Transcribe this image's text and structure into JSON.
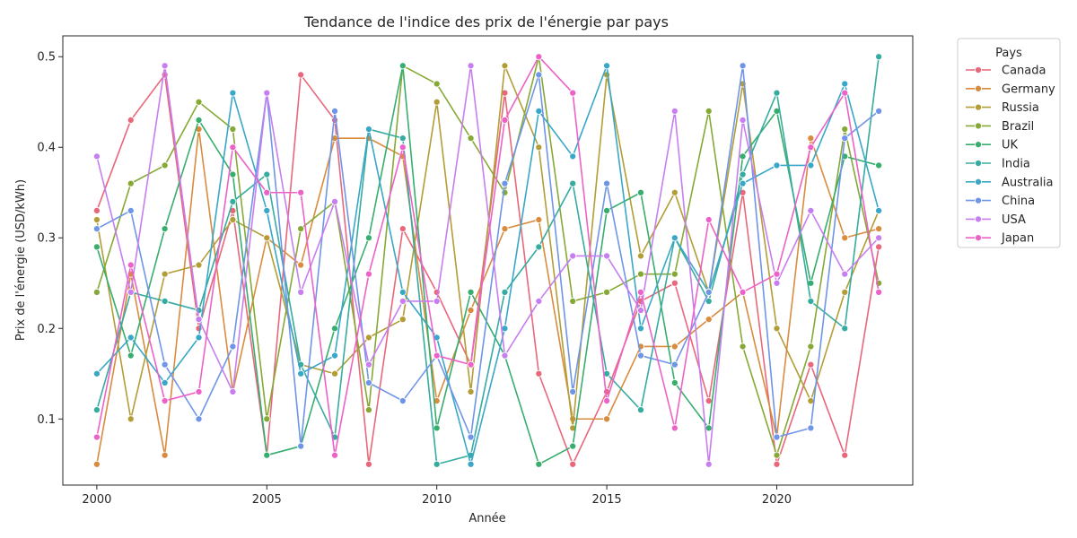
{
  "chart_data": {
    "type": "line",
    "title": "Tendance de l'indice des prix de l'énergie par pays",
    "xlabel": "Année",
    "ylabel": "Prix de l'énergie (USD/kWh)",
    "xlim": [
      1999,
      2024
    ],
    "ylim": [
      0.027,
      0.523
    ],
    "xticks": [
      2000,
      2005,
      2010,
      2015,
      2020
    ],
    "yticks": [
      0.1,
      0.2,
      0.3,
      0.4,
      0.5
    ],
    "grid": false,
    "legend": {
      "title": "Pays",
      "placement": "outside-right"
    },
    "markers": true,
    "x": [
      2000,
      2001,
      2002,
      2003,
      2004,
      2005,
      2006,
      2007,
      2008,
      2009,
      2010,
      2011,
      2012,
      2013,
      2014,
      2015,
      2016,
      2017,
      2018,
      2019,
      2020,
      2021,
      2022,
      2023
    ],
    "series": [
      {
        "name": "Canada",
        "color": "#e9677a",
        "values": [
          0.33,
          0.43,
          0.48,
          0.2,
          0.33,
          0.06,
          0.48,
          0.43,
          0.05,
          0.31,
          0.24,
          0.16,
          0.46,
          0.15,
          0.05,
          0.13,
          0.23,
          0.25,
          0.12,
          0.35,
          0.05,
          0.16,
          0.06,
          0.29
        ]
      },
      {
        "name": "Germany",
        "color": "#d98b3e",
        "values": [
          0.05,
          0.26,
          0.06,
          0.42,
          0.13,
          0.3,
          0.27,
          0.41,
          0.41,
          0.39,
          0.12,
          0.22,
          0.31,
          0.32,
          0.1,
          0.1,
          0.18,
          0.18,
          0.21,
          0.24,
          0.08,
          0.41,
          0.3,
          0.31
        ]
      },
      {
        "name": "Russia",
        "color": "#b39d36",
        "values": [
          0.32,
          0.1,
          0.26,
          0.27,
          0.32,
          0.3,
          0.16,
          0.15,
          0.19,
          0.21,
          0.45,
          0.13,
          0.49,
          0.4,
          0.09,
          0.48,
          0.28,
          0.35,
          0.24,
          0.47,
          0.2,
          0.12,
          0.24,
          0.33
        ]
      },
      {
        "name": "Brazil",
        "color": "#86a935",
        "values": [
          0.24,
          0.36,
          0.38,
          0.45,
          0.42,
          0.1,
          0.31,
          0.34,
          0.11,
          0.49,
          0.47,
          0.41,
          0.35,
          0.5,
          0.23,
          0.24,
          0.26,
          0.26,
          0.44,
          0.18,
          0.06,
          0.18,
          0.42,
          0.25
        ]
      },
      {
        "name": "UK",
        "color": "#37ad6e",
        "values": [
          0.29,
          0.17,
          0.31,
          0.43,
          0.37,
          0.06,
          0.07,
          0.2,
          0.3,
          0.49,
          0.09,
          0.24,
          0.17,
          0.05,
          0.07,
          0.33,
          0.35,
          0.14,
          0.09,
          0.39,
          0.44,
          0.25,
          0.39,
          0.38
        ]
      },
      {
        "name": "India",
        "color": "#36ab9f",
        "values": [
          0.11,
          0.24,
          0.23,
          0.22,
          0.34,
          0.37,
          0.16,
          0.08,
          0.42,
          0.41,
          0.05,
          0.06,
          0.24,
          0.29,
          0.36,
          0.15,
          0.11,
          0.3,
          0.23,
          0.37,
          0.46,
          0.23,
          0.2,
          0.5
        ]
      },
      {
        "name": "Australia",
        "color": "#39a7c8",
        "values": [
          0.15,
          0.19,
          0.14,
          0.19,
          0.46,
          0.33,
          0.15,
          0.17,
          0.42,
          0.24,
          0.19,
          0.05,
          0.2,
          0.44,
          0.39,
          0.49,
          0.2,
          0.3,
          0.24,
          0.36,
          0.38,
          0.38,
          0.47,
          0.33
        ]
      },
      {
        "name": "China",
        "color": "#6f95e8",
        "values": [
          0.31,
          0.33,
          0.16,
          0.1,
          0.18,
          0.46,
          0.07,
          0.44,
          0.14,
          0.12,
          0.17,
          0.08,
          0.36,
          0.48,
          0.13,
          0.36,
          0.17,
          0.16,
          0.24,
          0.49,
          0.08,
          0.09,
          0.41,
          0.44
        ]
      },
      {
        "name": "USA",
        "color": "#c77ef0",
        "values": [
          0.39,
          0.24,
          0.49,
          0.21,
          0.13,
          0.46,
          0.24,
          0.34,
          0.16,
          0.23,
          0.23,
          0.49,
          0.17,
          0.23,
          0.28,
          0.28,
          0.22,
          0.44,
          0.05,
          0.43,
          0.25,
          0.33,
          0.26,
          0.3
        ]
      },
      {
        "name": "Japan",
        "color": "#ec62c8",
        "values": [
          0.08,
          0.27,
          0.12,
          0.13,
          0.4,
          0.35,
          0.35,
          0.06,
          0.26,
          0.4,
          0.17,
          0.16,
          0.43,
          0.5,
          0.46,
          0.12,
          0.24,
          0.09,
          0.32,
          0.24,
          0.26,
          0.4,
          0.46,
          0.24
        ]
      }
    ]
  }
}
